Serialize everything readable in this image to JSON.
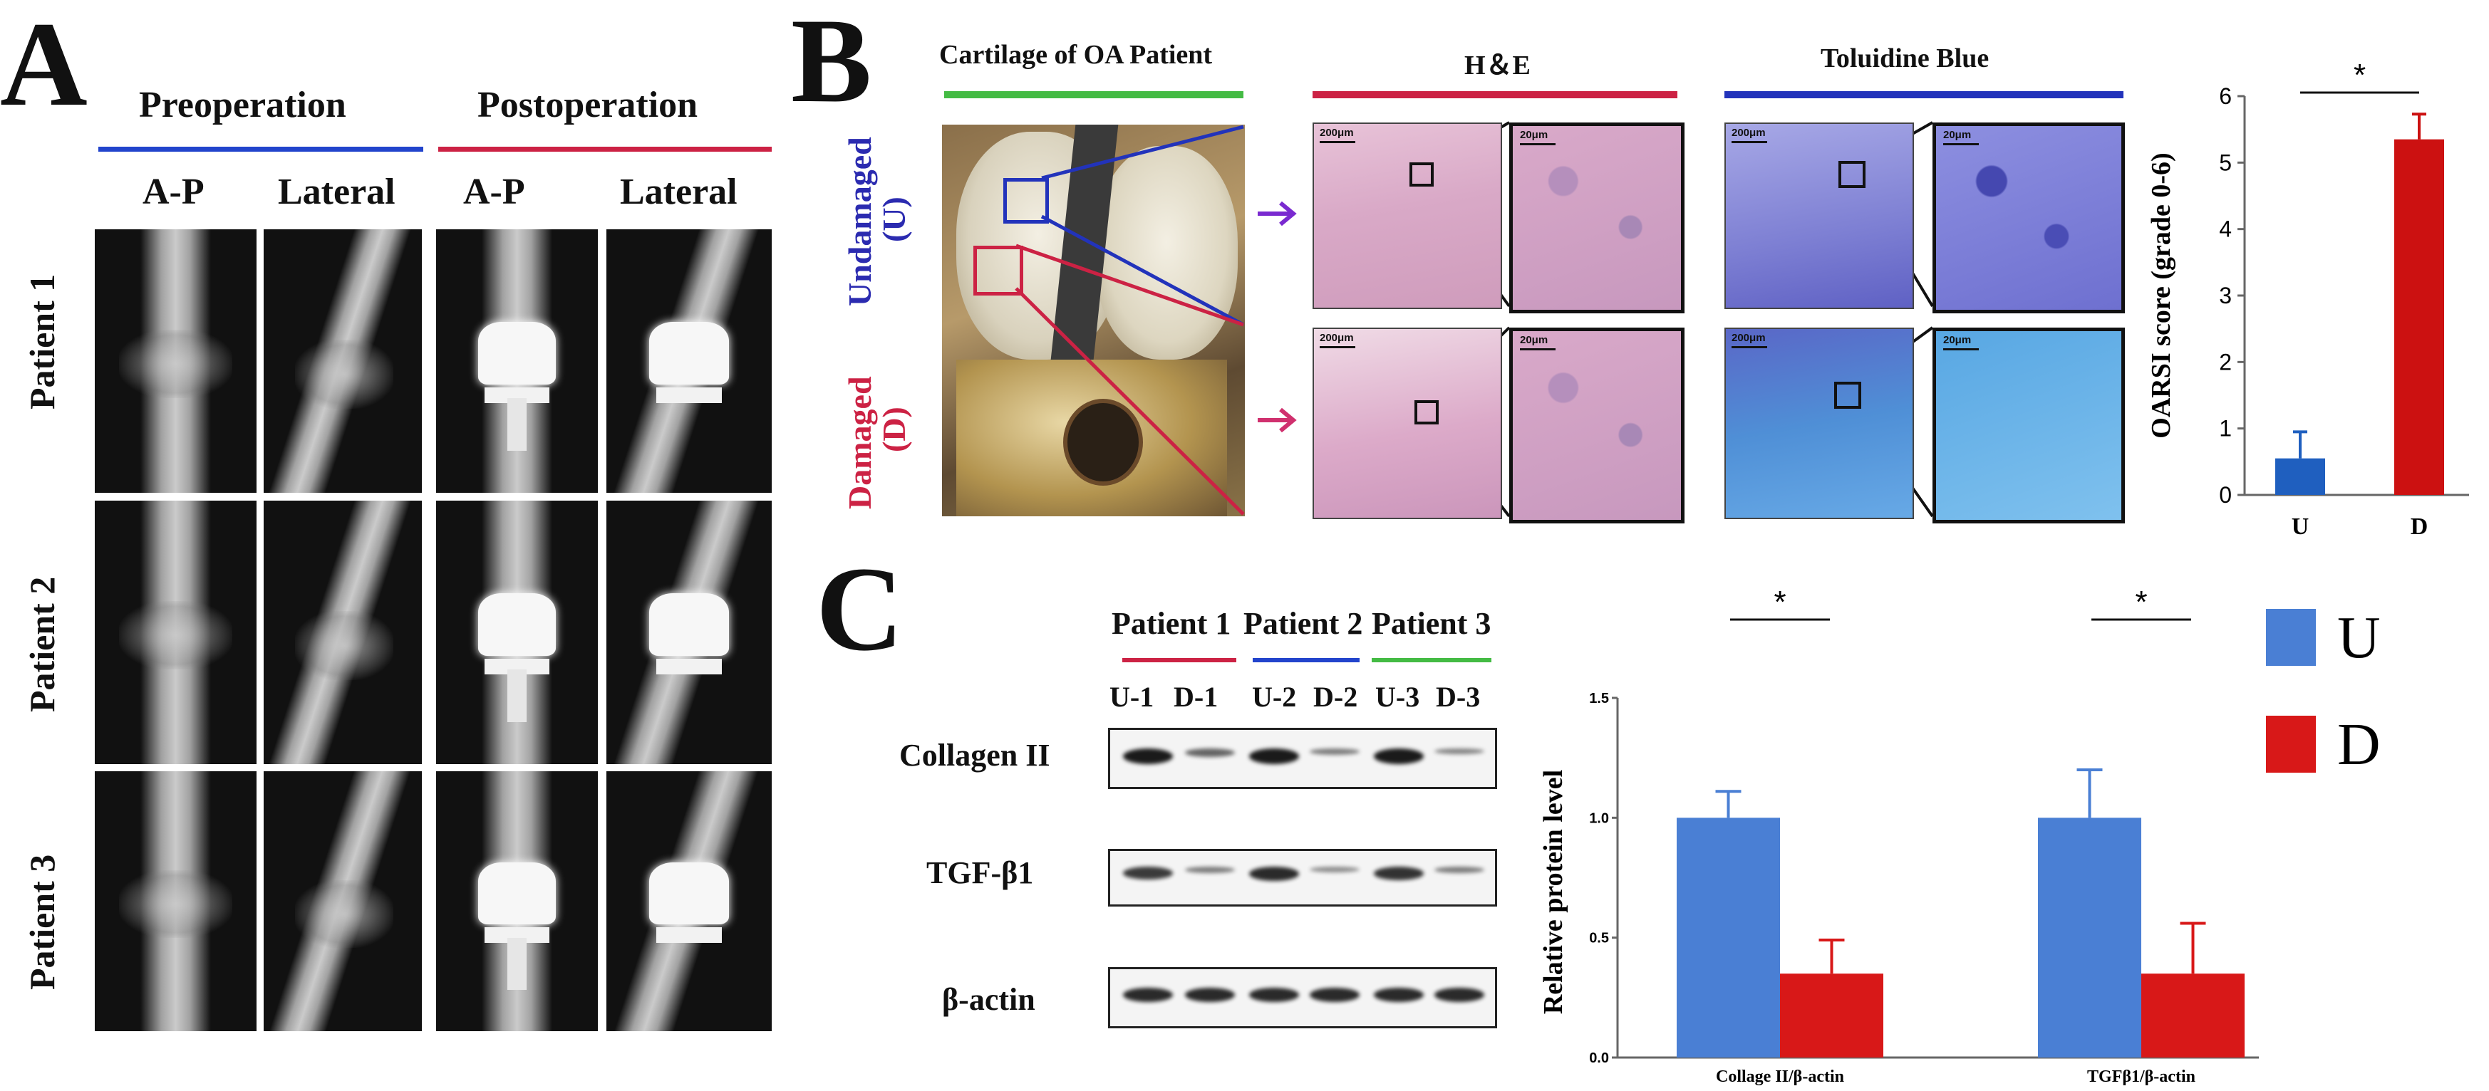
{
  "panelA": {
    "letter": "A",
    "groups": [
      "Preoperation",
      "Postoperation"
    ],
    "views": [
      "A-P",
      "Lateral",
      "A-P",
      "Lateral"
    ],
    "patients": [
      "Patient 1",
      "Patient 2",
      "Patient 3"
    ],
    "colors": {
      "pre": "#2244cc",
      "post": "#cc2244"
    }
  },
  "panelB": {
    "letter": "B",
    "headers": [
      "Cartilage of OA Patient",
      "H＆E",
      "Toluidine Blue"
    ],
    "row_labels": [
      {
        "line1": "Undamaged",
        "line2": "(U)",
        "color": "#2b2bb0"
      },
      {
        "line1": "Damaged",
        "line2": "(D)",
        "color": "#cc2244"
      }
    ],
    "scale_labels": [
      "200μm",
      "20μm"
    ],
    "header_colors": [
      "#44bb44",
      "#cc2244",
      "#2233bb"
    ]
  },
  "panelC": {
    "letter": "C",
    "patients": [
      "Patient 1",
      "Patient 2",
      "Patient 3"
    ],
    "patient_colors": [
      "#cc2244",
      "#2244cc",
      "#44bb44"
    ],
    "lanes": [
      "U-1",
      "D-1",
      "U-2",
      "D-2",
      "U-3",
      "D-3"
    ],
    "proteins": [
      "Collagen II",
      "TGF-β1",
      "β-actin"
    ],
    "band_intensity": [
      [
        1.0,
        0.55,
        1.0,
        0.4,
        1.0,
        0.35
      ],
      [
        0.8,
        0.4,
        0.9,
        0.3,
        0.85,
        0.4
      ],
      [
        0.9,
        0.9,
        0.9,
        0.9,
        0.9,
        0.9
      ]
    ]
  },
  "chart_data": [
    {
      "type": "bar",
      "categories": [
        "U",
        "D"
      ],
      "values": [
        0.55,
        5.35
      ],
      "errors": [
        0.4,
        0.38
      ],
      "colors": [
        "#1f5fbf",
        "#cc1111"
      ],
      "ylabel": "OARSI score (grade 0-6)",
      "ylim": [
        0,
        6
      ],
      "yticks": [
        0,
        1,
        2,
        3,
        4,
        5,
        6
      ],
      "significance": "*"
    },
    {
      "type": "bar",
      "categories": [
        "Collage II/β-actin",
        "TGFβ1/β-actin"
      ],
      "series": [
        {
          "name": "U",
          "values": [
            1.0,
            1.0
          ],
          "errors": [
            0.11,
            0.2
          ],
          "color": "#4a7fd4"
        },
        {
          "name": "D",
          "values": [
            0.35,
            0.35
          ],
          "errors": [
            0.14,
            0.21
          ],
          "color": "#d81818"
        }
      ],
      "ylabel": "Relative protein level",
      "ylim": [
        0,
        1.5
      ],
      "yticks": [
        "0.0",
        "0.5",
        "1.0",
        "1.5"
      ],
      "significance": "*",
      "legend": "right"
    }
  ]
}
